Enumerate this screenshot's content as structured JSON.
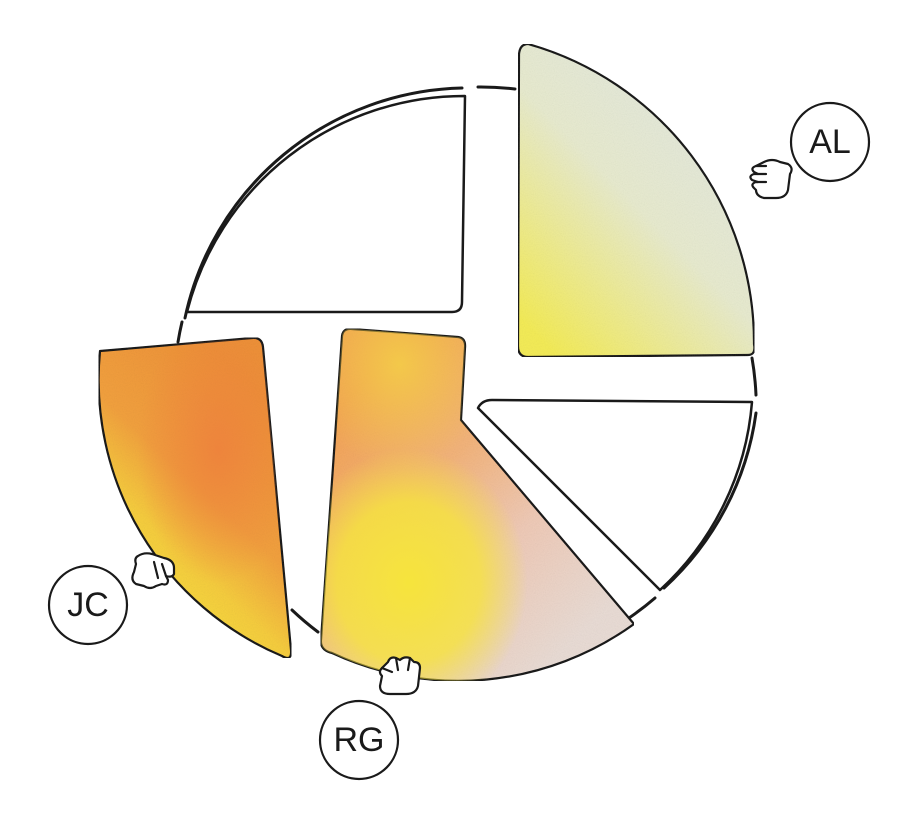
{
  "people": [
    {
      "initials": "AL"
    },
    {
      "initials": "JC"
    },
    {
      "initials": "RG"
    }
  ],
  "colors": {
    "outline": "#1a1a1a",
    "al_slice_light": "#e6ebdf",
    "al_slice_yellow": "#f3ec55",
    "jc_slice_orange": "#f09a3c",
    "jc_slice_yellow": "#f7e13d",
    "rg_slice_orange": "#f3a45a",
    "rg_slice_yellow": "#f6e23f",
    "rg_slice_pink": "#ead8cf"
  },
  "icons": [
    "hand-icon",
    "hand-icon",
    "hand-icon"
  ]
}
